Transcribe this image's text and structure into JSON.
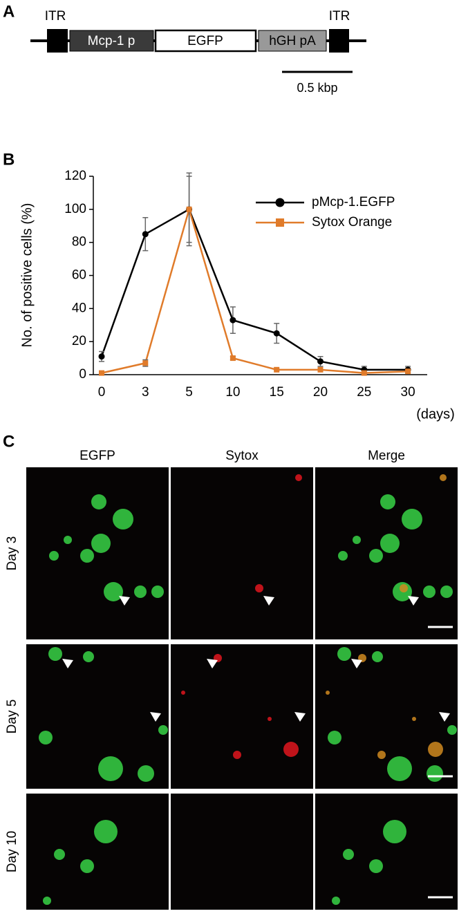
{
  "panel_labels": [
    "A",
    "B",
    "C"
  ],
  "construct": {
    "itr_left": "ITR",
    "itr_right": "ITR",
    "segments": [
      "Mcp-1 p",
      "EGFP",
      "hGH pA"
    ],
    "scale_label": "0.5 kbp"
  },
  "chart_data": {
    "type": "line",
    "y_label": "No. of positive cells (%)",
    "x_label": "(days)",
    "categories": [
      "0",
      "3",
      "5",
      "10",
      "15",
      "20",
      "25",
      "30"
    ],
    "ylim": [
      0,
      120
    ],
    "yticks": [
      0,
      20,
      40,
      60,
      80,
      100,
      120
    ],
    "legend": "top-right",
    "error_color": "#666666",
    "series": [
      {
        "name": "pMcp-1.EGFP",
        "color": "#000000",
        "marker": "circle",
        "values": [
          11,
          85,
          100,
          33,
          25,
          8,
          3,
          3
        ],
        "errors": [
          3,
          10,
          20,
          8,
          6,
          3,
          2,
          2
        ]
      },
      {
        "name": "Sytox Orange",
        "color": "#e07b2a",
        "marker": "square",
        "values": [
          1,
          7,
          100,
          10,
          3,
          3,
          1,
          2
        ],
        "errors": [
          0.5,
          2,
          22,
          1,
          0.5,
          1,
          0.5,
          0.5
        ]
      }
    ]
  },
  "micrographs": {
    "columns": [
      "EGFP",
      "Sytox",
      "Merge"
    ],
    "rows": [
      "Day 3",
      "Day 5",
      "Day 10"
    ]
  }
}
